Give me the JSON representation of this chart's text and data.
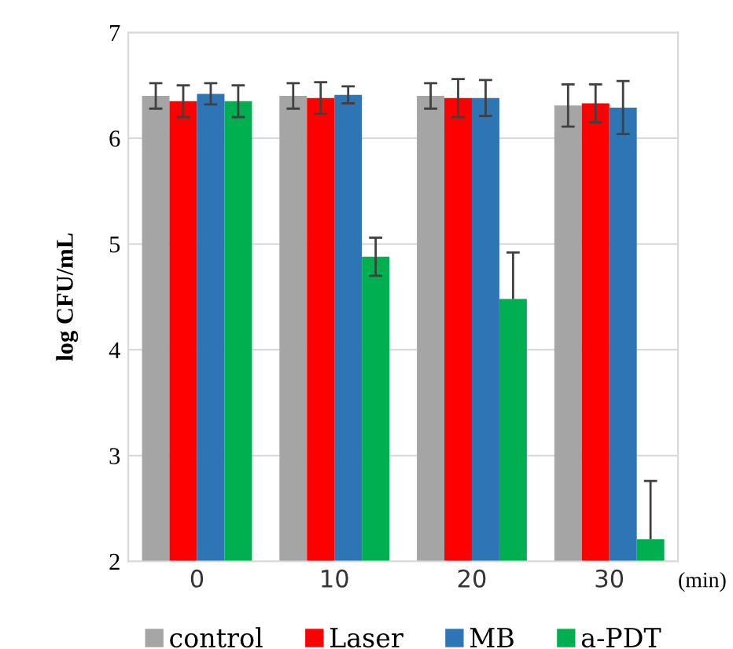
{
  "chart_data": {
    "type": "bar",
    "ylabel": "log CFU/mL",
    "annotations": [
      "(min)"
    ],
    "categories": [
      "0",
      "10",
      "20",
      "30"
    ],
    "series": [
      {
        "name": "control",
        "color": "#a5a5a5",
        "values": [
          6.4,
          6.4,
          6.4,
          6.31
        ],
        "errors": [
          0.12,
          0.12,
          0.12,
          0.2
        ]
      },
      {
        "name": "Laser",
        "color": "#ff0000",
        "values": [
          6.35,
          6.38,
          6.38,
          6.33
        ],
        "errors": [
          0.15,
          0.15,
          0.18,
          0.18
        ]
      },
      {
        "name": "MB",
        "color": "#2e75b6",
        "values": [
          6.42,
          6.41,
          6.38,
          6.29
        ],
        "errors": [
          0.1,
          0.08,
          0.17,
          0.25
        ]
      },
      {
        "name": "a-PDT",
        "color": "#00b050",
        "values": [
          6.35,
          4.88,
          4.48,
          2.21
        ],
        "errors": [
          0.15,
          0.18,
          [
            4.48,
            4.92
          ],
          [
            2.21,
            2.76
          ]
        ]
      }
    ],
    "ylim": [
      2,
      7
    ],
    "yticks": [
      2,
      3,
      4,
      5,
      6,
      7
    ],
    "grid": "y",
    "legend": "bottom"
  }
}
